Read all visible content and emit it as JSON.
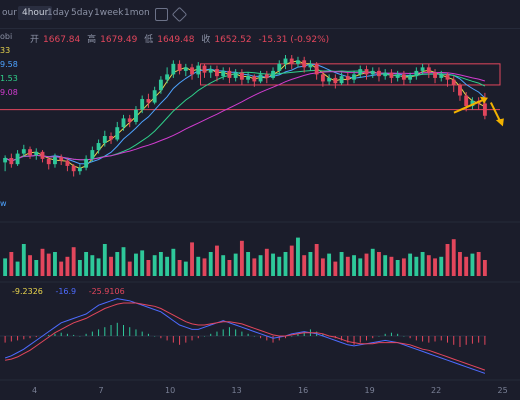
{
  "toolbar": {
    "timeframes": [
      "our",
      "4hour",
      "1day",
      "5day",
      "1week",
      "1mon"
    ],
    "active": "4hour"
  },
  "ohlc": {
    "open_label": "开",
    "open": "1667.84",
    "high_label": "高",
    "high": "1679.49",
    "low_label": "低",
    "low": "1649.48",
    "close_label": "收",
    "close": "1652.52",
    "change": "-15.31 (-0.92%)"
  },
  "legend": {
    "ma_partial_title": "obi",
    "ma_values": [
      "33",
      "9.58",
      "1.53",
      "9.08"
    ],
    "ma_colors": [
      "#e8d44d",
      "#4da3ff",
      "#2fd08a",
      "#d13ccf"
    ],
    "vol_partial_label": "w",
    "macd_values": [
      "-9.2326",
      "-16.9",
      "-25.9106"
    ]
  },
  "colors": {
    "up": "#2ec89a",
    "down": "#e2465c",
    "box": "#e2465c",
    "arrow": "#f2b200"
  },
  "chart_data": {
    "type": "candlestick",
    "x_tick_labels": [
      "4",
      "7",
      "10",
      "13",
      "16",
      "19",
      "22",
      "25"
    ],
    "price_box_top": 1712,
    "price_box_mid": 1688,
    "price_support": 1660,
    "candles": [
      [
        1600,
        1605,
        1590,
        1608
      ],
      [
        1605,
        1598,
        1594,
        1610
      ],
      [
        1598,
        1610,
        1596,
        1614
      ],
      [
        1610,
        1615,
        1606,
        1620
      ],
      [
        1615,
        1608,
        1604,
        1618
      ],
      [
        1608,
        1612,
        1603,
        1616
      ],
      [
        1612,
        1604,
        1600,
        1614
      ],
      [
        1604,
        1598,
        1592,
        1606
      ],
      [
        1598,
        1606,
        1594,
        1610
      ],
      [
        1606,
        1602,
        1597,
        1609
      ],
      [
        1602,
        1596,
        1590,
        1604
      ],
      [
        1596,
        1590,
        1584,
        1598
      ],
      [
        1590,
        1594,
        1586,
        1598
      ],
      [
        1594,
        1604,
        1591,
        1608
      ],
      [
        1604,
        1614,
        1601,
        1618
      ],
      [
        1614,
        1622,
        1610,
        1626
      ],
      [
        1622,
        1630,
        1618,
        1636
      ],
      [
        1630,
        1626,
        1621,
        1634
      ],
      [
        1626,
        1640,
        1624,
        1646
      ],
      [
        1640,
        1650,
        1636,
        1654
      ],
      [
        1650,
        1646,
        1640,
        1654
      ],
      [
        1646,
        1660,
        1643,
        1664
      ],
      [
        1660,
        1672,
        1656,
        1676
      ],
      [
        1672,
        1668,
        1662,
        1678
      ],
      [
        1668,
        1682,
        1666,
        1686
      ],
      [
        1682,
        1694,
        1678,
        1698
      ],
      [
        1694,
        1700,
        1690,
        1708
      ],
      [
        1700,
        1712,
        1696,
        1716
      ],
      [
        1712,
        1704,
        1700,
        1716
      ],
      [
        1704,
        1708,
        1698,
        1712
      ],
      [
        1708,
        1700,
        1694,
        1712
      ],
      [
        1700,
        1710,
        1696,
        1714
      ],
      [
        1710,
        1702,
        1696,
        1712
      ],
      [
        1702,
        1706,
        1696,
        1710
      ],
      [
        1706,
        1698,
        1692,
        1710
      ],
      [
        1698,
        1704,
        1694,
        1708
      ],
      [
        1704,
        1696,
        1690,
        1708
      ],
      [
        1696,
        1702,
        1692,
        1706
      ],
      [
        1702,
        1694,
        1688,
        1706
      ],
      [
        1694,
        1698,
        1690,
        1702
      ],
      [
        1698,
        1692,
        1686,
        1700
      ],
      [
        1692,
        1700,
        1690,
        1704
      ],
      [
        1700,
        1696,
        1690,
        1704
      ],
      [
        1696,
        1704,
        1694,
        1708
      ],
      [
        1704,
        1712,
        1700,
        1716
      ],
      [
        1712,
        1718,
        1706,
        1722
      ],
      [
        1718,
        1712,
        1706,
        1722
      ],
      [
        1712,
        1716,
        1708,
        1720
      ],
      [
        1716,
        1708,
        1702,
        1720
      ],
      [
        1708,
        1712,
        1704,
        1716
      ],
      [
        1712,
        1700,
        1694,
        1714
      ],
      [
        1700,
        1692,
        1686,
        1704
      ],
      [
        1692,
        1696,
        1688,
        1700
      ],
      [
        1696,
        1690,
        1684,
        1700
      ],
      [
        1690,
        1698,
        1688,
        1702
      ],
      [
        1698,
        1694,
        1688,
        1702
      ],
      [
        1694,
        1700,
        1690,
        1704
      ],
      [
        1700,
        1706,
        1696,
        1710
      ],
      [
        1706,
        1700,
        1694,
        1710
      ],
      [
        1700,
        1704,
        1696,
        1708
      ],
      [
        1704,
        1698,
        1692,
        1708
      ],
      [
        1698,
        1702,
        1694,
        1706
      ],
      [
        1702,
        1696,
        1690,
        1706
      ],
      [
        1696,
        1700,
        1692,
        1704
      ],
      [
        1700,
        1694,
        1688,
        1704
      ],
      [
        1694,
        1698,
        1690,
        1702
      ],
      [
        1698,
        1704,
        1694,
        1708
      ],
      [
        1704,
        1708,
        1700,
        1712
      ],
      [
        1708,
        1702,
        1696,
        1712
      ],
      [
        1702,
        1696,
        1690,
        1706
      ],
      [
        1696,
        1700,
        1692,
        1704
      ],
      [
        1700,
        1694,
        1686,
        1702
      ],
      [
        1694,
        1688,
        1680,
        1698
      ],
      [
        1688,
        1676,
        1670,
        1690
      ],
      [
        1676,
        1664,
        1658,
        1680
      ],
      [
        1664,
        1670,
        1660,
        1674
      ],
      [
        1670,
        1667,
        1660,
        1674
      ],
      [
        1667,
        1653,
        1649,
        1679
      ]
    ],
    "volumes": [
      22,
      30,
      18,
      40,
      26,
      20,
      34,
      28,
      30,
      18,
      24,
      36,
      20,
      30,
      26,
      22,
      40,
      24,
      30,
      36,
      18,
      28,
      32,
      20,
      26,
      30,
      24,
      34,
      20,
      18,
      42,
      24,
      22,
      30,
      38,
      26,
      20,
      28,
      44,
      30,
      22,
      26,
      34,
      28,
      24,
      30,
      38,
      48,
      26,
      30,
      40,
      22,
      28,
      18,
      30,
      24,
      26,
      22,
      28,
      34,
      30,
      26,
      24,
      20,
      22,
      28,
      24,
      30,
      26,
      22,
      24,
      40,
      46,
      30,
      24,
      28,
      30,
      20
    ],
    "macd_hist": [
      -6,
      -5,
      -4,
      -3,
      -2,
      -1,
      0,
      1,
      2,
      3,
      2,
      1,
      0,
      2,
      4,
      6,
      8,
      10,
      12,
      10,
      8,
      6,
      4,
      2,
      0,
      -2,
      -4,
      -6,
      -8,
      -6,
      -4,
      -2,
      0,
      2,
      4,
      6,
      8,
      6,
      4,
      2,
      0,
      -2,
      -4,
      -6,
      -4,
      -2,
      0,
      2,
      4,
      6,
      4,
      2,
      0,
      -2,
      -4,
      -6,
      -8,
      -6,
      -4,
      -2,
      0,
      2,
      3,
      2,
      0,
      -2,
      -4,
      -5,
      -6,
      -5,
      -4,
      -6,
      -8,
      -10,
      -8,
      -7,
      -6,
      -8
    ],
    "macd_dif": [
      -20,
      -18,
      -15,
      -12,
      -8,
      -4,
      0,
      4,
      8,
      12,
      14,
      16,
      18,
      20,
      24,
      28,
      30,
      32,
      34,
      33,
      32,
      30,
      28,
      26,
      24,
      22,
      18,
      14,
      10,
      8,
      6,
      6,
      8,
      10,
      12,
      14,
      12,
      10,
      8,
      6,
      4,
      2,
      0,
      -2,
      -1,
      0,
      2,
      3,
      4,
      3,
      2,
      0,
      -2,
      -4,
      -6,
      -8,
      -9,
      -8,
      -7,
      -6,
      -5,
      -4,
      -5,
      -6,
      -8,
      -10,
      -12,
      -14,
      -16,
      -18,
      -20,
      -22,
      -24,
      -26,
      -28,
      -30,
      -32,
      -34
    ],
    "macd_dea": [
      -22,
      -21,
      -19,
      -16,
      -13,
      -9,
      -5,
      -1,
      3,
      6,
      9,
      12,
      14,
      16,
      19,
      22,
      25,
      27,
      29,
      30,
      30,
      30,
      29,
      28,
      27,
      25,
      22,
      19,
      16,
      13,
      11,
      10,
      10,
      11,
      12,
      13,
      13,
      12,
      11,
      9,
      7,
      5,
      3,
      1,
      0,
      0,
      1,
      2,
      3,
      3,
      3,
      2,
      0,
      -1,
      -3,
      -5,
      -6,
      -7,
      -7,
      -7,
      -6,
      -6,
      -6,
      -6,
      -7,
      -8,
      -10,
      -12,
      -13,
      -15,
      -17,
      -19,
      -21,
      -23,
      -25,
      -27,
      -29,
      -31
    ]
  }
}
